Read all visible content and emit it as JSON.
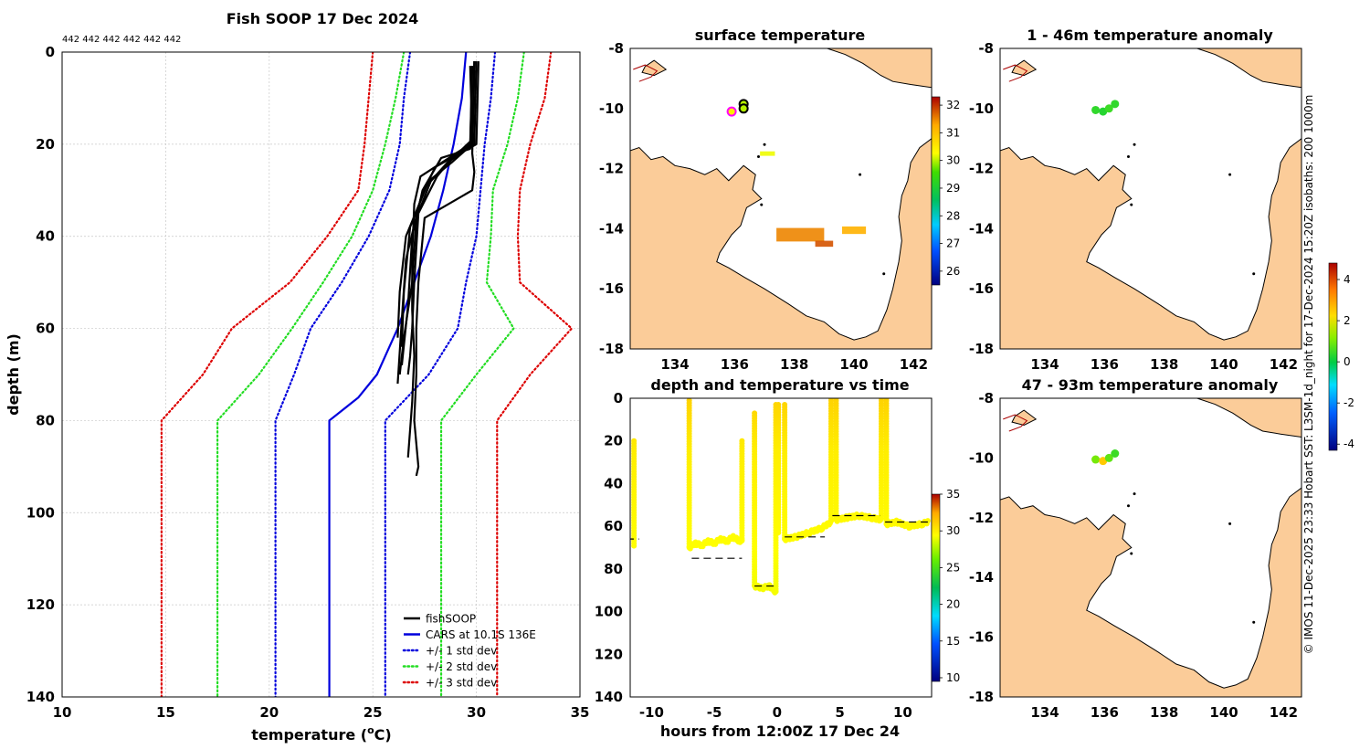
{
  "colors": {
    "land": "#fbcc99",
    "coast": "#000000",
    "grid": "#c8c8c8",
    "fishsoop": "#000000",
    "cars": "#0000dd",
    "std1": "#0000dd",
    "std2": "#22dd22",
    "std3": "#dd0000"
  },
  "side_note": "© IMOS 11-Dec-2025 23:33 Hobart SST: L3SM-1d_night for 17-Dec-2024 15:20Z isobaths: 200  1000m",
  "chart_data": [
    {
      "id": "profile",
      "type": "line",
      "title": "Fish SOOP 17 Dec 2024",
      "subtitle": "442 442 442 442 442 442",
      "xlabel": "temperature (°C)",
      "xlabel_main": "temperature (",
      "xlabel_sup": "o",
      "xlabel_tail": "C)",
      "ylabel": "depth (m)",
      "xlim": [
        10,
        35
      ],
      "ylim": [
        0,
        140
      ],
      "y_reversed": true,
      "xticks": [
        10,
        15,
        20,
        25,
        30,
        35
      ],
      "yticks": [
        0,
        20,
        40,
        60,
        80,
        100,
        120,
        140
      ],
      "legend_position": "bottom-right",
      "legend": [
        "fishSOOP",
        "CARS at 10.1S 136E",
        "+/- 1 std dev",
        "+/- 2 std dev",
        "+/- 3 std dev"
      ],
      "series": [
        {
          "name": "CARS at 10.1S 136E",
          "style": "solid",
          "color": "#0000dd",
          "depth": [
            0,
            5,
            10,
            20,
            30,
            40,
            50,
            60,
            70,
            75,
            80,
            140
          ],
          "temp": [
            29.5,
            29.4,
            29.3,
            28.9,
            28.4,
            27.8,
            27.0,
            26.2,
            25.2,
            24.3,
            22.9,
            22.9
          ]
        },
        {
          "name": "+/- 1 std dev",
          "style": "dotted",
          "color": "#0000dd",
          "depth": [
            0,
            10,
            20,
            30,
            40,
            50,
            60,
            70,
            80,
            140
          ],
          "temp": [
            26.8,
            26.5,
            26.3,
            25.8,
            24.8,
            23.5,
            22.0,
            21.2,
            20.3,
            20.3
          ]
        },
        {
          "name": "+/- 1 std dev",
          "style": "dotted",
          "color": "#0000dd",
          "depth": [
            0,
            10,
            20,
            30,
            40,
            50,
            60,
            70,
            80,
            140
          ],
          "temp": [
            30.9,
            30.7,
            30.4,
            30.2,
            30.0,
            29.5,
            29.1,
            27.7,
            25.6,
            25.6
          ]
        },
        {
          "name": "+/- 2 std dev",
          "style": "dotted",
          "color": "#22dd22",
          "depth": [
            0,
            10,
            20,
            30,
            40,
            50,
            60,
            70,
            80,
            140
          ],
          "temp": [
            26.5,
            26.1,
            25.6,
            25.0,
            24.0,
            22.6,
            21.1,
            19.5,
            17.5,
            17.5
          ]
        },
        {
          "name": "+/- 2 std dev",
          "style": "dotted",
          "color": "#22dd22",
          "depth": [
            0,
            10,
            20,
            30,
            40,
            50,
            60,
            70,
            80,
            140
          ],
          "temp": [
            32.3,
            32.0,
            31.5,
            30.8,
            30.7,
            30.5,
            31.8,
            30.0,
            28.3,
            28.3
          ]
        },
        {
          "name": "+/- 3 std dev",
          "style": "dotted",
          "color": "#dd0000",
          "depth": [
            0,
            10,
            20,
            30,
            40,
            50,
            60,
            70,
            80,
            140
          ],
          "temp": [
            25.0,
            24.8,
            24.6,
            24.3,
            22.8,
            21.0,
            18.2,
            16.8,
            14.8,
            14.8
          ]
        },
        {
          "name": "+/- 3 std dev",
          "style": "dotted",
          "color": "#dd0000",
          "depth": [
            0,
            10,
            20,
            30,
            40,
            50,
            60,
            70,
            80,
            140
          ],
          "temp": [
            33.6,
            33.3,
            32.6,
            32.1,
            32.0,
            32.1,
            34.6,
            32.6,
            31.0,
            31.0
          ]
        }
      ],
      "casts": [
        {
          "depth": [
            2,
            20,
            22,
            27,
            35,
            50,
            60,
            66,
            70
          ],
          "temp": [
            29.9,
            29.8,
            29.0,
            28.1,
            27.2,
            27.0,
            26.9,
            26.8,
            26.7
          ]
        },
        {
          "depth": [
            3,
            19,
            22,
            28,
            36,
            50,
            62,
            70
          ],
          "temp": [
            29.7,
            29.8,
            29.1,
            27.8,
            27.1,
            26.9,
            26.5,
            26.3
          ]
        },
        {
          "depth": [
            2,
            20,
            24,
            29,
            38,
            52,
            64
          ],
          "temp": [
            30.0,
            29.9,
            28.6,
            27.6,
            26.8,
            26.5,
            26.4
          ]
        },
        {
          "depth": [
            3,
            21,
            23,
            30,
            40,
            55,
            68
          ],
          "temp": [
            29.8,
            29.7,
            28.3,
            27.4,
            26.9,
            26.7,
            26.4
          ]
        },
        {
          "depth": [
            2,
            20,
            25,
            32,
            45,
            58,
            72
          ],
          "temp": [
            30.1,
            30.0,
            28.0,
            27.3,
            26.6,
            26.4,
            26.2
          ]
        },
        {
          "depth": [
            2,
            22,
            26,
            30,
            36,
            50,
            60,
            70,
            80,
            90,
            92
          ],
          "temp": [
            29.9,
            29.8,
            29.9,
            29.8,
            27.5,
            27.2,
            27.1,
            27.1,
            27.0,
            27.2,
            27.1
          ]
        },
        {
          "depth": [
            3,
            20,
            27,
            33,
            44,
            56,
            66,
            76,
            88
          ],
          "temp": [
            29.8,
            29.7,
            27.3,
            27.0,
            26.9,
            26.9,
            27.0,
            26.9,
            26.7
          ]
        },
        {
          "depth": [
            4,
            20,
            24,
            28,
            40,
            52,
            62
          ],
          "temp": [
            29.9,
            29.8,
            28.8,
            27.7,
            26.6,
            26.3,
            26.2
          ]
        }
      ]
    },
    {
      "id": "sst_map",
      "type": "heatmap",
      "title": "surface temperature",
      "xlim": [
        132.5,
        142.6
      ],
      "ylim": [
        -18,
        -8
      ],
      "xticks": [
        134,
        136,
        138,
        140,
        142
      ],
      "yticks": [
        -8,
        -10,
        -12,
        -14,
        -16,
        -18
      ],
      "colorbar": {
        "min": 25.5,
        "max": 32.3,
        "ticks": [
          26,
          27,
          28,
          29,
          30,
          31,
          32
        ]
      },
      "points": [
        {
          "lon": 135.9,
          "lat": -10.1,
          "value": 30.5,
          "ring": "#ff00ff"
        },
        {
          "lon": 136.3,
          "lat": -9.85,
          "value": 30.0,
          "ring": "#000000"
        },
        {
          "lon": 136.3,
          "lat": -10.0,
          "value": 30.0,
          "ring": "#000000"
        }
      ],
      "patches": [
        {
          "lon": 138.2,
          "lat": -14.2,
          "w": 1.6,
          "h": 0.45,
          "value": 31.5
        },
        {
          "lon": 140.0,
          "lat": -14.05,
          "w": 0.8,
          "h": 0.25,
          "value": 31.2
        },
        {
          "lon": 139.0,
          "lat": -14.5,
          "w": 0.6,
          "h": 0.2,
          "value": 31.8
        },
        {
          "lon": 137.1,
          "lat": -11.5,
          "w": 0.5,
          "h": 0.15,
          "value": 30.2
        }
      ]
    },
    {
      "id": "anom_map_1",
      "type": "heatmap",
      "title": "1 - 46m temperature anomaly",
      "xlim": [
        132.5,
        142.6
      ],
      "ylim": [
        -18,
        -8
      ],
      "xticks": [
        134,
        136,
        138,
        140,
        142
      ],
      "yticks": [
        -8,
        -10,
        -12,
        -14,
        -16,
        -18
      ],
      "points": [
        {
          "lon": 135.7,
          "lat": -10.05,
          "value": 0.4
        },
        {
          "lon": 135.95,
          "lat": -10.1,
          "value": 0.3
        },
        {
          "lon": 136.15,
          "lat": -10.0,
          "value": 0.5
        },
        {
          "lon": 136.35,
          "lat": -9.85,
          "value": 0.4
        }
      ]
    },
    {
      "id": "anom_map_2",
      "type": "heatmap",
      "title": "47 - 93m temperature anomaly",
      "xlim": [
        132.5,
        142.6
      ],
      "ylim": [
        -18,
        -8
      ],
      "xticks": [
        134,
        136,
        138,
        140,
        142
      ],
      "yticks": [
        -8,
        -10,
        -12,
        -14,
        -16,
        -18
      ],
      "points": [
        {
          "lon": 135.7,
          "lat": -10.05,
          "value": 1.0
        },
        {
          "lon": 135.95,
          "lat": -10.1,
          "value": 2.5
        },
        {
          "lon": 136.15,
          "lat": -10.0,
          "value": 0.8
        },
        {
          "lon": 136.35,
          "lat": -9.85,
          "value": 0.5
        }
      ]
    },
    {
      "id": "anom_colorbar",
      "type": "colorbar",
      "min": -4.3,
      "max": 4.8,
      "ticks": [
        -4,
        -2,
        0,
        2,
        4
      ]
    },
    {
      "id": "depth_time",
      "type": "scatter",
      "title": "depth and temperature vs time",
      "xlabel": "hours from 12:00Z 17 Dec 24",
      "xlim": [
        -11.7,
        12.3
      ],
      "ylim": [
        0,
        140
      ],
      "y_reversed": true,
      "xticks": [
        -10,
        -5,
        0,
        5,
        10
      ],
      "yticks": [
        0,
        20,
        40,
        60,
        80,
        100,
        120,
        140
      ],
      "colorbar": {
        "min": 9.5,
        "max": 35,
        "ticks": [
          10,
          15,
          20,
          25,
          30,
          35
        ]
      },
      "segments": [
        {
          "type": "vertical",
          "x": -11.4,
          "top": 20,
          "bottom": 70
        },
        {
          "type": "vertical",
          "x": -7.0,
          "top": 1,
          "bottom": 70
        },
        {
          "type": "track",
          "x": [
            -7.0,
            -6.5,
            -6.0,
            -5.5,
            -5.0,
            -4.5,
            -4.0,
            -3.5,
            -3.0,
            -2.8
          ],
          "d": [
            70,
            68,
            69,
            67,
            68,
            66,
            67,
            65,
            67,
            66
          ]
        },
        {
          "type": "vertical",
          "x": -2.8,
          "top": 20,
          "bottom": 68
        },
        {
          "type": "vertical",
          "x": -1.8,
          "top": 7,
          "bottom": 88
        },
        {
          "type": "track",
          "x": [
            -1.8,
            -1.2,
            -0.6,
            -0.1
          ],
          "d": [
            88,
            89,
            88,
            91
          ]
        },
        {
          "type": "vertical",
          "x": -0.1,
          "top": 3,
          "bottom": 91
        },
        {
          "type": "vertical",
          "x": 0.1,
          "top": 3,
          "bottom": 64
        },
        {
          "type": "vertical",
          "x": 0.6,
          "top": 3,
          "bottom": 66
        },
        {
          "type": "track",
          "x": [
            0.6,
            1.5,
            2.5,
            3.5,
            4.3
          ],
          "d": [
            66,
            65,
            63,
            61,
            58
          ]
        },
        {
          "type": "vertical",
          "x": 4.3,
          "top": 0,
          "bottom": 58
        },
        {
          "type": "vertical",
          "x": 4.7,
          "top": 0,
          "bottom": 57
        },
        {
          "type": "track",
          "x": [
            4.7,
            5.5,
            6.5,
            7.5,
            8.3
          ],
          "d": [
            57,
            56,
            55,
            56,
            57
          ]
        },
        {
          "type": "vertical",
          "x": 8.3,
          "top": 0,
          "bottom": 57
        },
        {
          "type": "vertical",
          "x": 8.7,
          "top": 0,
          "bottom": 59
        },
        {
          "type": "track",
          "x": [
            8.7,
            9.5,
            10.5,
            11.5,
            12.0
          ],
          "d": [
            59,
            58,
            60,
            59,
            58
          ]
        }
      ],
      "mean_depths": [
        {
          "x0": -12.0,
          "x1": -11.0,
          "depth": 66
        },
        {
          "x0": -6.8,
          "x1": -2.8,
          "depth": 75
        },
        {
          "x0": -1.8,
          "x1": 0.0,
          "depth": 88
        },
        {
          "x0": 0.6,
          "x1": 3.8,
          "depth": 65
        },
        {
          "x0": 4.4,
          "x1": 8.2,
          "depth": 55
        },
        {
          "x0": 8.6,
          "x1": 12.0,
          "depth": 58
        }
      ]
    }
  ]
}
